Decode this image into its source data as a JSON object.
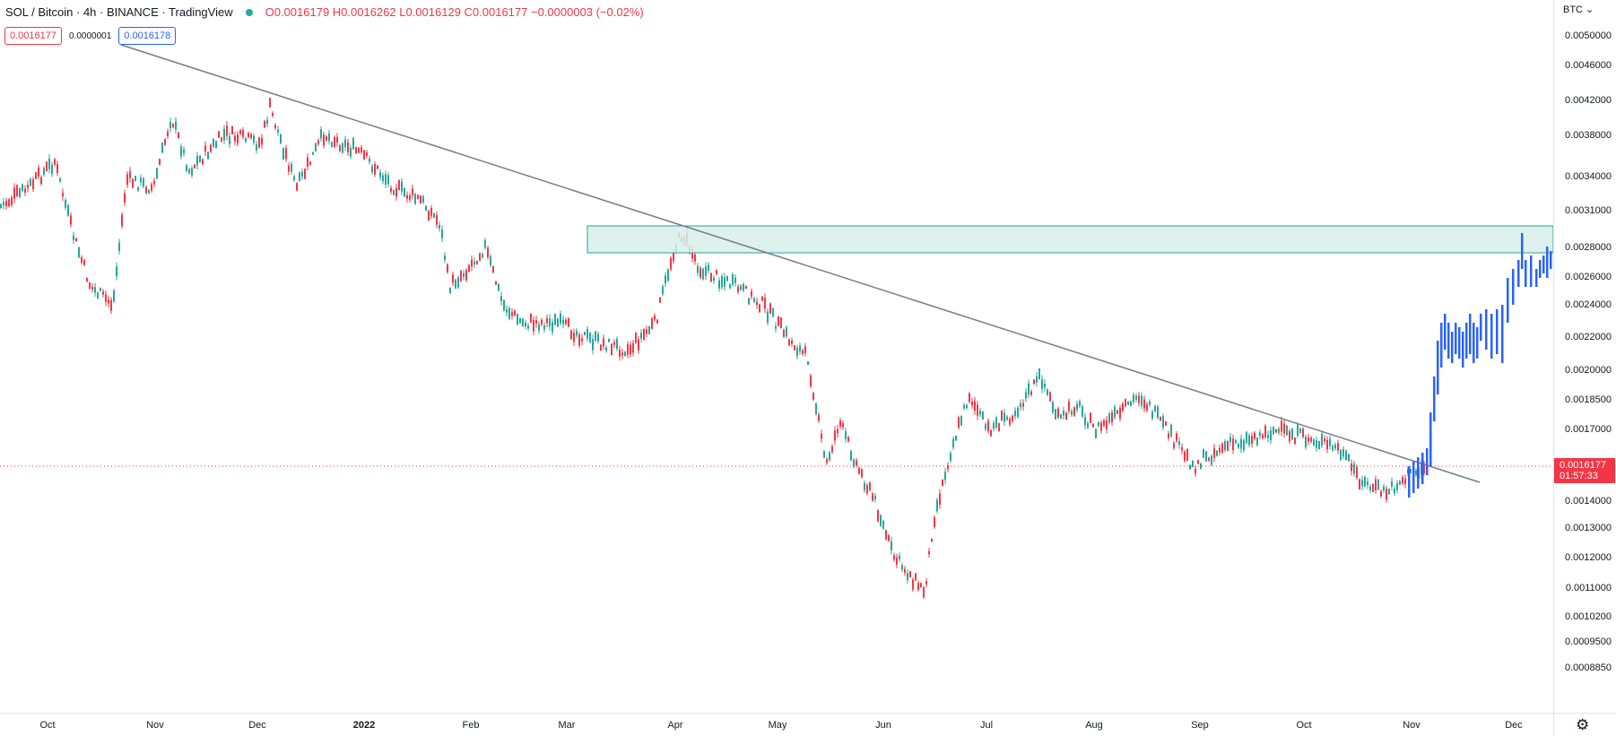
{
  "legend": {
    "title": "SOL / Bitcoin · 4h · BINANCE · TradingView",
    "ohlc": "O0.0016179 H0.0016262 L0.0016129 C0.0016177 −0.0000003 (−0.02%)"
  },
  "trade": {
    "sell": "0.0016177",
    "spread": "0.0000001",
    "buy": "0.0016178"
  },
  "price_scale": {
    "currency": "BTC ⌄",
    "labels": [
      "0.0050000",
      "0.0046000",
      "0.0042000",
      "0.0038000",
      "0.0034000",
      "0.0031000",
      "0.0028000",
      "0.0026000",
      "0.0024000",
      "0.0022000",
      "0.0020000",
      "0.0018500",
      "0.0017000",
      "0.0014000",
      "0.0013000",
      "0.0012000",
      "0.0011000",
      "0.0010200",
      "0.0009500",
      "0.0008850"
    ],
    "current_price": "0.0016177",
    "countdown": "01:57:33"
  },
  "time_scale": {
    "labels": [
      "Oct",
      "Nov",
      "Dec",
      "2022",
      "Feb",
      "Mar",
      "Apr",
      "May",
      "Jun",
      "Jul",
      "Aug",
      "Sep",
      "Oct",
      "Nov",
      "Dec"
    ]
  },
  "colors": {
    "up": "#26a69a",
    "down": "#f23645",
    "projection": "#2962ff",
    "zone_fill": "#d7efea",
    "zone_border": "#26a69a",
    "trendline": "#787b86"
  },
  "icons": {
    "settings": "gear-icon"
  }
}
